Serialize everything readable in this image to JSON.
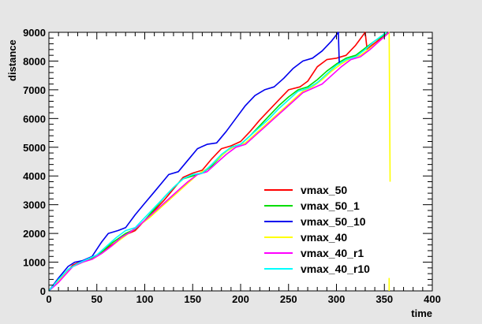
{
  "chart_data": {
    "type": "line",
    "title": "",
    "xlabel": "time",
    "ylabel": "distance",
    "xlim": [
      0,
      400
    ],
    "ylim": [
      0,
      9000
    ],
    "x_ticks": [
      "0",
      "50",
      "100",
      "150",
      "200",
      "250",
      "300",
      "350",
      "400"
    ],
    "y_ticks": [
      "0",
      "1000",
      "2000",
      "3000",
      "4000",
      "5000",
      "6000",
      "7000",
      "8000",
      "9000"
    ],
    "grid": false,
    "legend_position": "bottom-right",
    "series": [
      {
        "name": "vmax_50",
        "color": "#ff0000",
        "points": [
          [
            0,
            0
          ],
          [
            10,
            350
          ],
          [
            25,
            900
          ],
          [
            35,
            1050
          ],
          [
            45,
            1150
          ],
          [
            55,
            1350
          ],
          [
            70,
            1700
          ],
          [
            80,
            1950
          ],
          [
            90,
            2100
          ],
          [
            100,
            2450
          ],
          [
            110,
            2800
          ],
          [
            120,
            3150
          ],
          [
            130,
            3550
          ],
          [
            140,
            3950
          ],
          [
            150,
            4100
          ],
          [
            160,
            4200
          ],
          [
            170,
            4600
          ],
          [
            180,
            4950
          ],
          [
            190,
            5050
          ],
          [
            200,
            5200
          ],
          [
            210,
            5550
          ],
          [
            220,
            5950
          ],
          [
            230,
            6300
          ],
          [
            240,
            6650
          ],
          [
            250,
            7000
          ],
          [
            262,
            7100
          ],
          [
            270,
            7300
          ],
          [
            280,
            7800
          ],
          [
            290,
            8050
          ],
          [
            300,
            8100
          ],
          [
            310,
            8200
          ],
          [
            320,
            8550
          ],
          [
            330,
            9000
          ],
          [
            332,
            8400
          ],
          [
            335,
            8500
          ],
          [
            345,
            8750
          ],
          [
            355,
            9000
          ]
        ]
      },
      {
        "name": "vmax_50_1",
        "color": "#00dd00",
        "points": [
          [
            0,
            0
          ],
          [
            10,
            350
          ],
          [
            25,
            850
          ],
          [
            35,
            1000
          ],
          [
            45,
            1150
          ],
          [
            55,
            1350
          ],
          [
            65,
            1650
          ],
          [
            80,
            2000
          ],
          [
            90,
            2150
          ],
          [
            100,
            2450
          ],
          [
            110,
            2850
          ],
          [
            120,
            3250
          ],
          [
            130,
            3600
          ],
          [
            140,
            3900
          ],
          [
            150,
            4000
          ],
          [
            160,
            4100
          ],
          [
            170,
            4350
          ],
          [
            180,
            4700
          ],
          [
            190,
            5000
          ],
          [
            200,
            5100
          ],
          [
            210,
            5400
          ],
          [
            220,
            5750
          ],
          [
            230,
            6100
          ],
          [
            240,
            6450
          ],
          [
            250,
            6750
          ],
          [
            260,
            7000
          ],
          [
            270,
            7100
          ],
          [
            280,
            7350
          ],
          [
            290,
            7650
          ],
          [
            300,
            7900
          ],
          [
            310,
            8100
          ],
          [
            320,
            8200
          ],
          [
            330,
            8450
          ],
          [
            340,
            8700
          ],
          [
            355,
            9000
          ]
        ]
      },
      {
        "name": "vmax_50_10",
        "color": "#0000ee",
        "points": [
          [
            0,
            0
          ],
          [
            10,
            450
          ],
          [
            20,
            850
          ],
          [
            27,
            1000
          ],
          [
            35,
            1050
          ],
          [
            45,
            1200
          ],
          [
            55,
            1700
          ],
          [
            62,
            2000
          ],
          [
            72,
            2100
          ],
          [
            80,
            2200
          ],
          [
            90,
            2650
          ],
          [
            100,
            3050
          ],
          [
            110,
            3450
          ],
          [
            120,
            3850
          ],
          [
            125,
            4050
          ],
          [
            135,
            4150
          ],
          [
            145,
            4550
          ],
          [
            155,
            4950
          ],
          [
            165,
            5100
          ],
          [
            175,
            5150
          ],
          [
            185,
            5550
          ],
          [
            195,
            6000
          ],
          [
            205,
            6450
          ],
          [
            215,
            6800
          ],
          [
            225,
            7000
          ],
          [
            235,
            7100
          ],
          [
            245,
            7400
          ],
          [
            255,
            7750
          ],
          [
            265,
            8000
          ],
          [
            275,
            8100
          ],
          [
            285,
            8350
          ],
          [
            295,
            8700
          ],
          [
            302,
            9000
          ],
          [
            303,
            7900
          ]
        ]
      },
      {
        "name": "vmax_40",
        "color": "#ffff00",
        "points": [
          [
            0,
            0
          ],
          [
            10,
            350
          ],
          [
            25,
            850
          ],
          [
            35,
            1000
          ],
          [
            45,
            1100
          ],
          [
            55,
            1300
          ],
          [
            65,
            1550
          ],
          [
            75,
            1800
          ],
          [
            85,
            2050
          ],
          [
            95,
            2300
          ],
          [
            105,
            2550
          ],
          [
            115,
            2850
          ],
          [
            125,
            3150
          ],
          [
            135,
            3450
          ],
          [
            145,
            3750
          ],
          [
            155,
            4050
          ],
          [
            165,
            4250
          ],
          [
            175,
            4550
          ],
          [
            185,
            4850
          ],
          [
            195,
            5050
          ],
          [
            205,
            5150
          ],
          [
            215,
            5450
          ],
          [
            225,
            5750
          ],
          [
            235,
            6050
          ],
          [
            245,
            6350
          ],
          [
            255,
            6650
          ],
          [
            265,
            6950
          ],
          [
            275,
            7100
          ],
          [
            285,
            7350
          ],
          [
            295,
            7650
          ],
          [
            305,
            7900
          ],
          [
            315,
            8100
          ],
          [
            325,
            8200
          ],
          [
            335,
            8450
          ],
          [
            345,
            8700
          ],
          [
            355,
            9000
          ],
          [
            356,
            3800
          ]
        ]
      },
      {
        "name": "vmax_40_r1",
        "color": "#ff00ff",
        "points": [
          [
            0,
            0
          ],
          [
            10,
            300
          ],
          [
            25,
            850
          ],
          [
            35,
            1000
          ],
          [
            45,
            1100
          ],
          [
            55,
            1300
          ],
          [
            65,
            1550
          ],
          [
            75,
            1850
          ],
          [
            85,
            2050
          ],
          [
            95,
            2300
          ],
          [
            105,
            2600
          ],
          [
            115,
            2900
          ],
          [
            125,
            3200
          ],
          [
            135,
            3500
          ],
          [
            145,
            3800
          ],
          [
            155,
            4050
          ],
          [
            165,
            4150
          ],
          [
            175,
            4450
          ],
          [
            185,
            4750
          ],
          [
            195,
            5000
          ],
          [
            205,
            5100
          ],
          [
            215,
            5400
          ],
          [
            225,
            5700
          ],
          [
            235,
            6000
          ],
          [
            245,
            6300
          ],
          [
            255,
            6600
          ],
          [
            265,
            6900
          ],
          [
            275,
            7050
          ],
          [
            285,
            7200
          ],
          [
            295,
            7500
          ],
          [
            305,
            7800
          ],
          [
            315,
            8050
          ],
          [
            325,
            8150
          ],
          [
            335,
            8400
          ],
          [
            345,
            8700
          ],
          [
            355,
            9000
          ]
        ]
      },
      {
        "name": "vmax_40_r10",
        "color": "#00ffff",
        "points": [
          [
            0,
            0
          ],
          [
            10,
            400
          ],
          [
            20,
            750
          ],
          [
            30,
            950
          ],
          [
            40,
            1100
          ],
          [
            50,
            1250
          ],
          [
            60,
            1550
          ],
          [
            70,
            1850
          ],
          [
            80,
            2100
          ],
          [
            90,
            2200
          ],
          [
            100,
            2550
          ],
          [
            110,
            2900
          ],
          [
            120,
            3250
          ],
          [
            130,
            3600
          ],
          [
            140,
            3900
          ],
          [
            150,
            4050
          ],
          [
            160,
            4100
          ],
          [
            170,
            4400
          ],
          [
            180,
            4750
          ],
          [
            190,
            5000
          ],
          [
            200,
            5100
          ],
          [
            210,
            5400
          ],
          [
            220,
            5700
          ],
          [
            230,
            6000
          ],
          [
            240,
            6350
          ],
          [
            250,
            6650
          ],
          [
            260,
            6950
          ],
          [
            270,
            7050
          ],
          [
            280,
            7250
          ],
          [
            290,
            7550
          ],
          [
            300,
            7850
          ],
          [
            310,
            8050
          ],
          [
            320,
            8150
          ],
          [
            330,
            8400
          ],
          [
            340,
            8700
          ],
          [
            352,
            9000
          ]
        ]
      }
    ],
    "extra_segments": [
      {
        "series": "vmax_40",
        "color": "#ffff00",
        "points": [
          [
            355,
            450
          ],
          [
            355,
            0
          ]
        ]
      }
    ]
  }
}
